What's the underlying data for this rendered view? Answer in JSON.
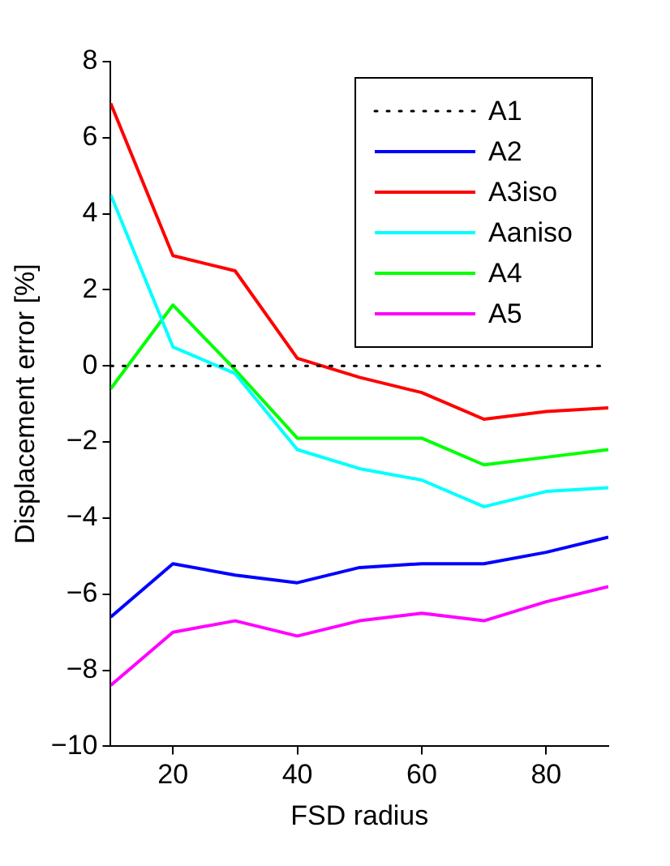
{
  "chart_data": {
    "type": "line",
    "xlabel": "FSD radius",
    "ylabel": "Displacement error [%]",
    "x": [
      10,
      20,
      30,
      40,
      50,
      60,
      70,
      80,
      90
    ],
    "xlim": [
      10,
      90
    ],
    "xticks": [
      20,
      40,
      60,
      80
    ],
    "ylim": [
      -10,
      8
    ],
    "yticks": [
      -10,
      -8,
      -6,
      -4,
      -2,
      0,
      2,
      4,
      6,
      8
    ],
    "grid": false,
    "legend": "top right",
    "marker": "none",
    "series": [
      {
        "name": "A1",
        "color": "#000000",
        "line_style": "dotted",
        "values": [
          0,
          0,
          0,
          0,
          0,
          0,
          0,
          0,
          0
        ]
      },
      {
        "name": "A2",
        "color": "#0000ff",
        "values": [
          -6.6,
          -5.2,
          -5.5,
          -5.7,
          -5.3,
          -5.2,
          -5.2,
          -4.9,
          -4.5
        ]
      },
      {
        "name": "A3iso",
        "color": "#ff0000",
        "values": [
          6.9,
          2.9,
          2.5,
          0.2,
          -0.3,
          -0.7,
          -1.4,
          -1.2,
          -1.1
        ]
      },
      {
        "name": "Aaniso",
        "color": "#00ffff",
        "values": [
          4.5,
          0.5,
          -0.2,
          -2.2,
          -2.7,
          -3.0,
          -3.7,
          -3.3,
          -3.2
        ]
      },
      {
        "name": "A4",
        "color": "#00ff00",
        "values": [
          -0.6,
          1.6,
          -0.1,
          -1.9,
          -1.9,
          -1.9,
          -2.6,
          -2.4,
          -2.2
        ]
      },
      {
        "name": "A5",
        "color": "#ff00ff",
        "values": [
          -8.4,
          -7.0,
          -6.7,
          -7.1,
          -6.7,
          -6.5,
          -6.7,
          -6.2,
          -5.8
        ]
      }
    ]
  }
}
